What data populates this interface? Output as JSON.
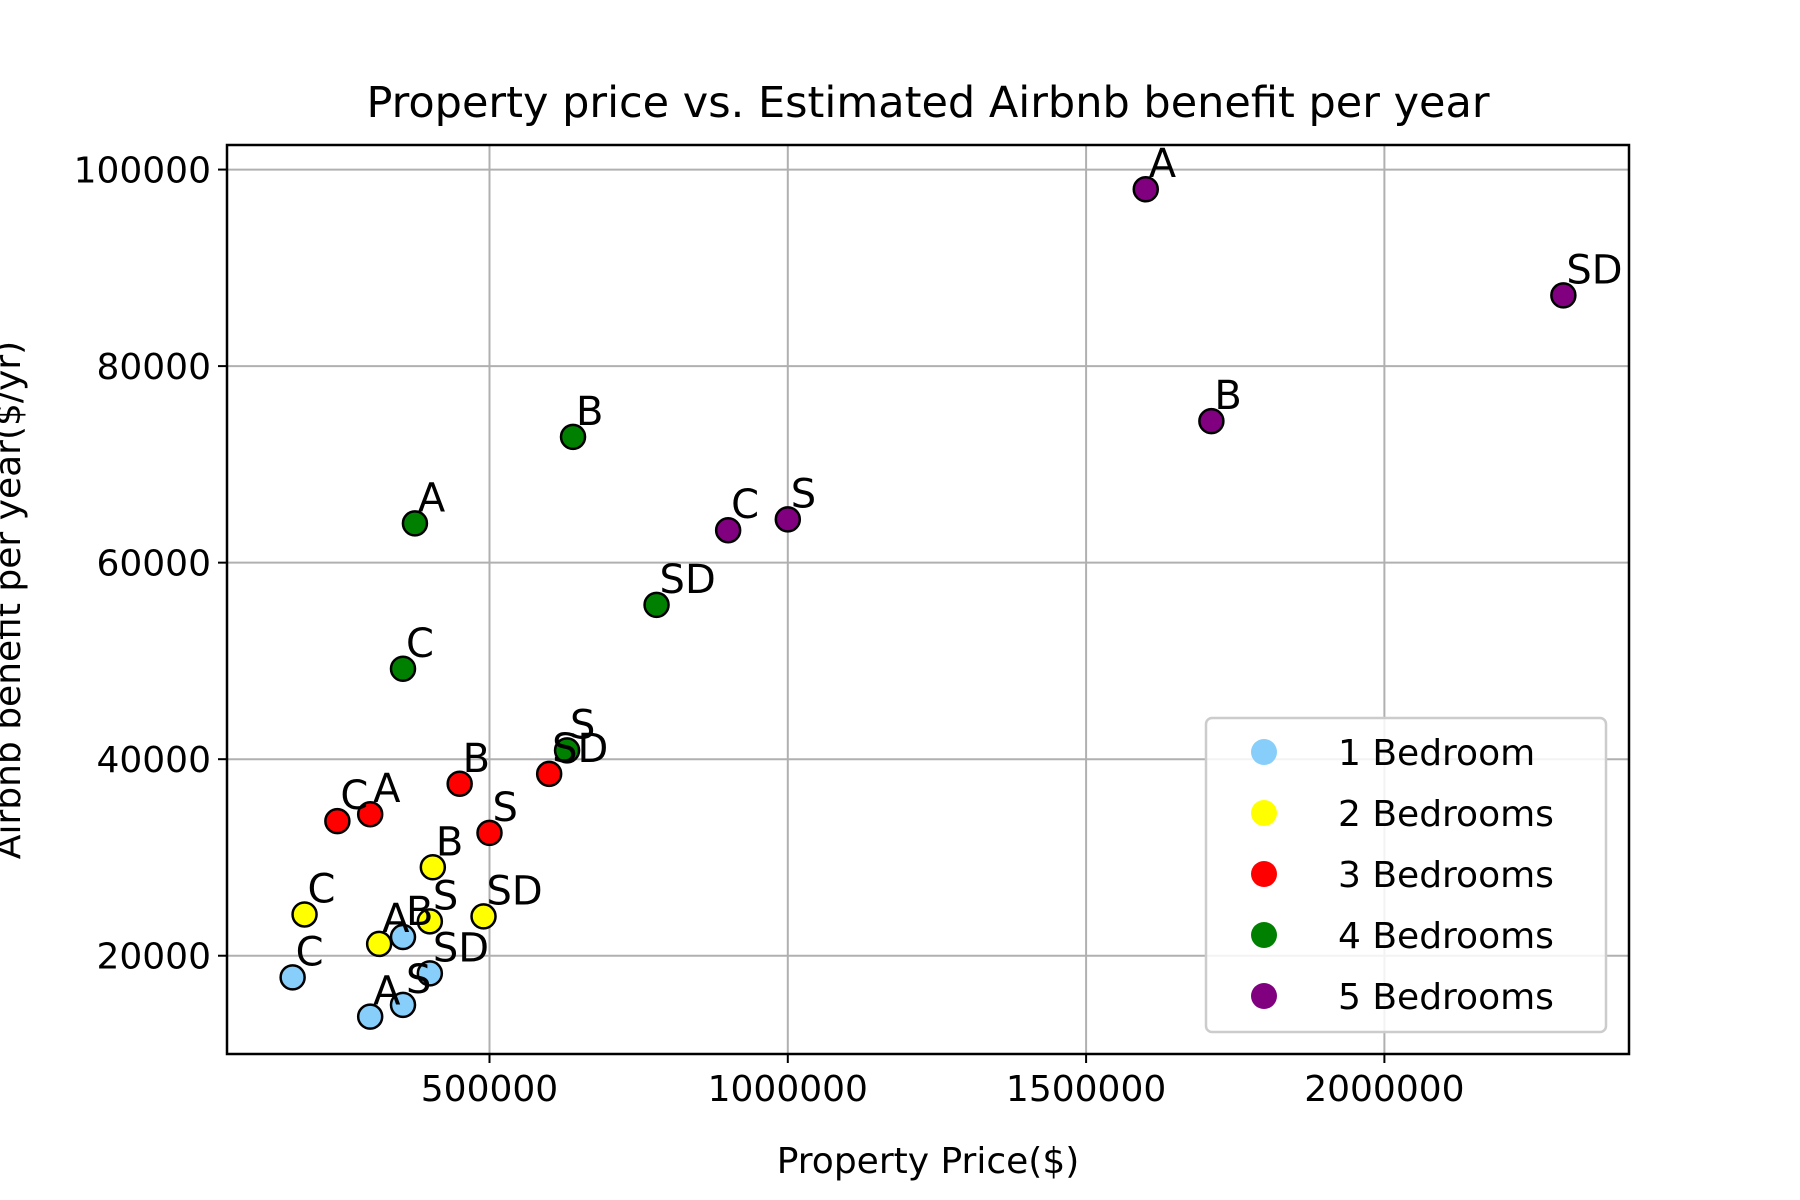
{
  "chart_data": {
    "type": "scatter",
    "title": "Property price vs. Estimated Airbnb benefit per year",
    "xlabel": "Property Price($)",
    "ylabel": "Airbnb benefit per year($/yr)",
    "xlim": [
      60000,
      2410000
    ],
    "ylim": [
      10000,
      102500
    ],
    "xticks": [
      500000,
      1000000,
      1500000,
      2000000
    ],
    "yticks": [
      20000,
      40000,
      60000,
      80000,
      100000
    ],
    "grid": true,
    "legend_position": "lower-right",
    "series": [
      {
        "name": "1 Bedroom",
        "color": "#87CEFA",
        "points": [
          {
            "x": 170000,
            "y": 17800,
            "label": "C"
          },
          {
            "x": 300000,
            "y": 13800,
            "label": "A"
          },
          {
            "x": 355000,
            "y": 15000,
            "label": "S"
          },
          {
            "x": 355000,
            "y": 21900,
            "label": "B"
          },
          {
            "x": 400000,
            "y": 18200,
            "label": "SD"
          }
        ]
      },
      {
        "name": "2 Bedrooms",
        "color": "#FFFF00",
        "points": [
          {
            "x": 190000,
            "y": 24200,
            "label": "C"
          },
          {
            "x": 315000,
            "y": 21200,
            "label": "A"
          },
          {
            "x": 405000,
            "y": 29000,
            "label": "B"
          },
          {
            "x": 400000,
            "y": 23500,
            "label": "S"
          },
          {
            "x": 490000,
            "y": 24000,
            "label": "SD"
          }
        ]
      },
      {
        "name": "3 Bedrooms",
        "color": "#FF0000",
        "points": [
          {
            "x": 245000,
            "y": 33700,
            "label": "C"
          },
          {
            "x": 300000,
            "y": 34400,
            "label": "A"
          },
          {
            "x": 450000,
            "y": 37500,
            "label": "B"
          },
          {
            "x": 500000,
            "y": 32500,
            "label": "S"
          },
          {
            "x": 600000,
            "y": 38500,
            "label": "SD"
          }
        ]
      },
      {
        "name": "4 Bedrooms",
        "color": "#008000",
        "points": [
          {
            "x": 375000,
            "y": 64000,
            "label": "A"
          },
          {
            "x": 355000,
            "y": 49200,
            "label": "C"
          },
          {
            "x": 640000,
            "y": 72800,
            "label": "B"
          },
          {
            "x": 630000,
            "y": 40900,
            "label": "S"
          },
          {
            "x": 780000,
            "y": 55700,
            "label": "SD"
          }
        ]
      },
      {
        "name": "5 Bedrooms",
        "color": "#800080",
        "points": [
          {
            "x": 1600000,
            "y": 98000,
            "label": "A"
          },
          {
            "x": 2300000,
            "y": 87200,
            "label": "SD"
          },
          {
            "x": 1710000,
            "y": 74400,
            "label": "B"
          },
          {
            "x": 900000,
            "y": 63300,
            "label": "C"
          },
          {
            "x": 1000000,
            "y": 64400,
            "label": "S"
          }
        ]
      }
    ]
  }
}
